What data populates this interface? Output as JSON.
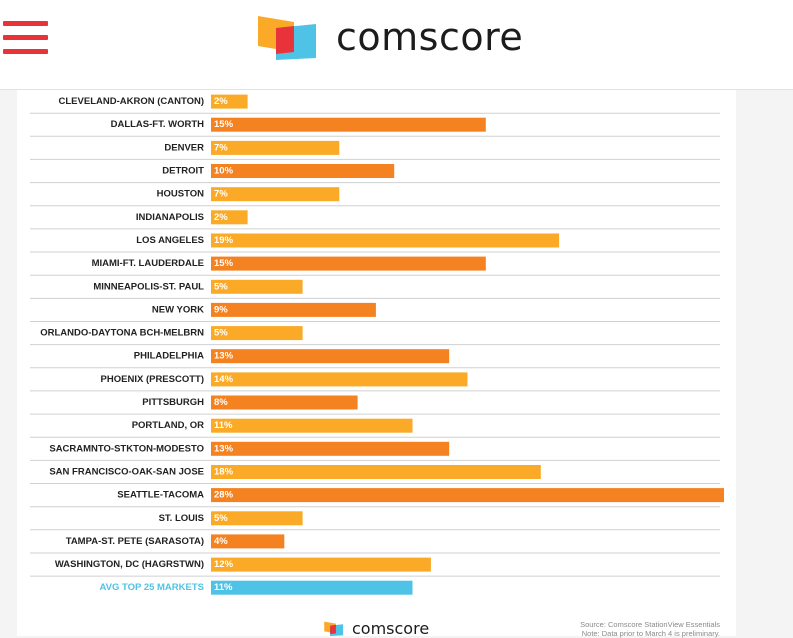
{
  "header": {
    "brand": "comscore",
    "menu_icon": "hamburger-menu-icon",
    "logo_icon": "comscore-logo-icon"
  },
  "colors": {
    "orange_dark": "#f58220",
    "orange_light": "#fbaa27",
    "avg_blue": "#4fc3e6",
    "menu_red": "#e8333b"
  },
  "footer": {
    "brand": "comscore",
    "source_line1": "Source: Comscore StationView Essentials",
    "source_line2": "Note: Data prior to March 4 is preliminary."
  },
  "chart_data": {
    "type": "bar",
    "orientation": "horizontal",
    "categories": [
      "CLEVELAND-AKRON (CANTON)",
      "DALLAS-FT. WORTH",
      "DENVER",
      "DETROIT",
      "HOUSTON",
      "INDIANAPOLIS",
      "LOS ANGELES",
      "MIAMI-FT. LAUDERDALE",
      "MINNEAPOLIS-ST. PAUL",
      "NEW YORK",
      "ORLANDO-DAYTONA BCH-MELBRN",
      "PHILADELPHIA",
      "PHOENIX (PRESCOTT)",
      "PITTSBURGH",
      "PORTLAND, OR",
      "SACRAMNTO-STKTON-MODESTO",
      "SAN FRANCISCO-OAK-SAN JOSE",
      "SEATTLE-TACOMA",
      "ST. LOUIS",
      "TAMPA-ST. PETE (SARASOTA)",
      "WASHINGTON, DC (HAGRSTWN)",
      "AVG TOP 25 MARKETS"
    ],
    "values": [
      2,
      15,
      7,
      10,
      7,
      2,
      19,
      15,
      5,
      9,
      5,
      13,
      14,
      8,
      11,
      13,
      18,
      28,
      5,
      4,
      12,
      11
    ],
    "value_labels": [
      "2%",
      "15%",
      "7%",
      "10%",
      "7%",
      "2%",
      "19%",
      "15%",
      "5%",
      "9%",
      "5%",
      "13%",
      "14%",
      "8%",
      "11%",
      "13%",
      "18%",
      "28%",
      "5%",
      "4%",
      "12%",
      "11%"
    ],
    "bar_colors": [
      "orange_light",
      "orange_dark",
      "orange_light",
      "orange_dark",
      "orange_light",
      "orange_light",
      "orange_light",
      "orange_dark",
      "orange_light",
      "orange_dark",
      "orange_light",
      "orange_dark",
      "orange_light",
      "orange_dark",
      "orange_light",
      "orange_dark",
      "orange_light",
      "orange_dark",
      "orange_light",
      "orange_dark",
      "orange_light",
      "avg_blue"
    ],
    "xlim": [
      0,
      28
    ],
    "grid": true,
    "title": "",
    "xlabel": "",
    "ylabel": ""
  }
}
